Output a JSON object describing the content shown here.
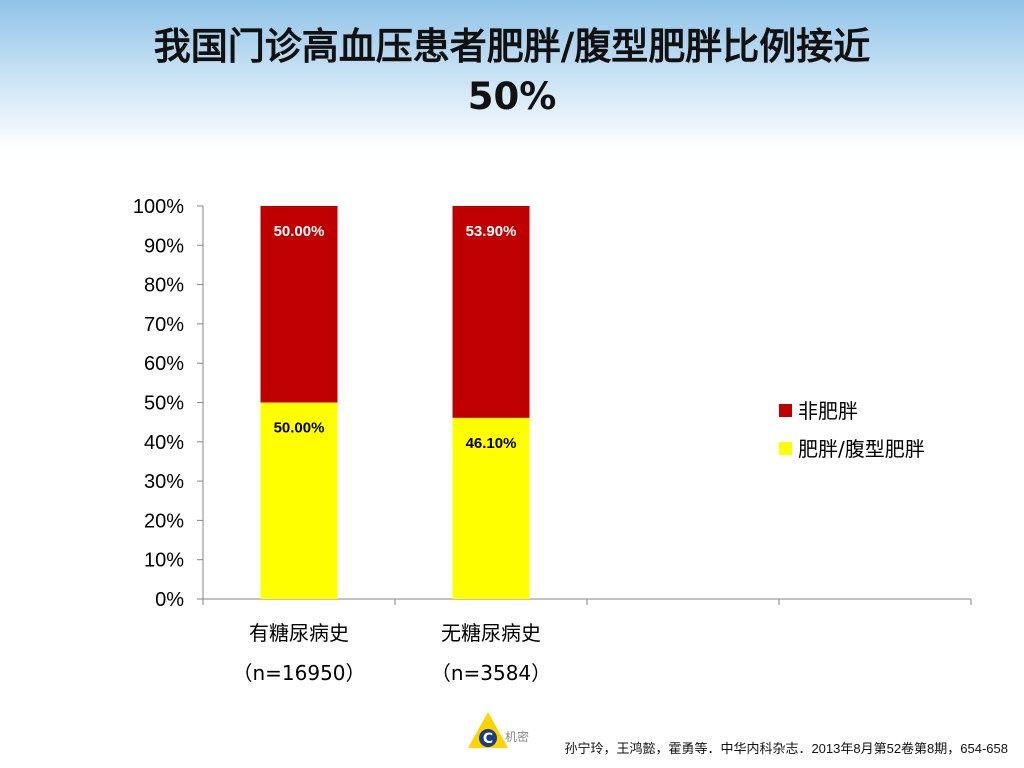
{
  "slide": {
    "title_line1": "我国门诊高血压患者肥胖/腹型肥胖比例接近",
    "title_line2": "50%",
    "footer": "孙宁玲，王鸿懿，霍勇等．中华内科杂志．2013年8月第52卷第8期，654-658",
    "logo_text": "机密"
  },
  "colors": {
    "obese": "#ffff00",
    "non_obese": "#c00000",
    "band": "#8fc3e8"
  },
  "chart_data": {
    "type": "bar",
    "stacked": true,
    "percent": true,
    "categories": [
      {
        "line1": "有糖尿病史",
        "line2": "（n=16950）"
      },
      {
        "line1": "无糖尿病史",
        "line2": "（n=3584）"
      },
      {
        "line1": "",
        "line2": ""
      },
      {
        "line1": "",
        "line2": ""
      }
    ],
    "series": [
      {
        "name": "肥胖/腹型肥胖",
        "color": "#ffff00",
        "values": [
          50.0,
          46.1,
          null,
          null
        ],
        "labels": [
          "50.00%",
          "46.10%",
          "",
          ""
        ]
      },
      {
        "name": "非肥胖",
        "color": "#c00000",
        "values": [
          50.0,
          53.9,
          null,
          null
        ],
        "labels": [
          "50.00%",
          "53.90%",
          "",
          ""
        ]
      }
    ],
    "ylim": [
      0,
      100
    ],
    "yticks": [
      "0%",
      "10%",
      "20%",
      "30%",
      "40%",
      "50%",
      "60%",
      "70%",
      "80%",
      "90%",
      "100%"
    ],
    "grid": false,
    "legend_position": "right",
    "legend_order": [
      "非肥胖",
      "肥胖/腹型肥胖"
    ]
  }
}
